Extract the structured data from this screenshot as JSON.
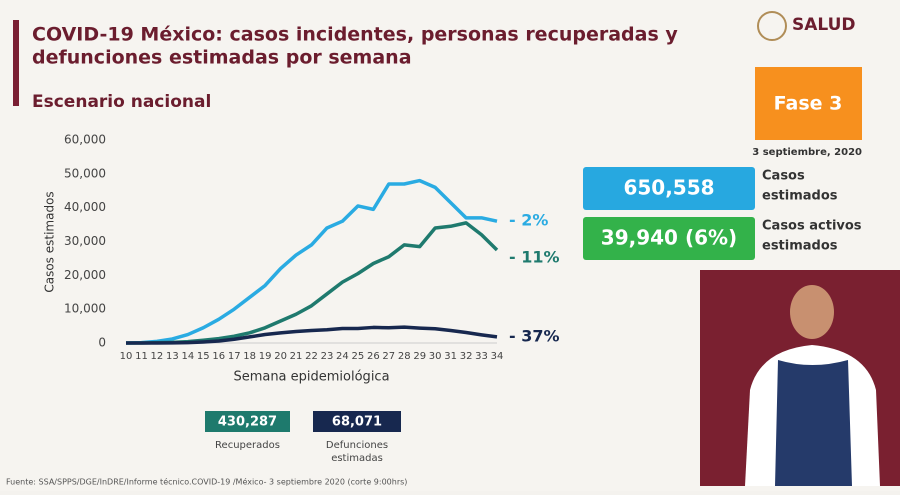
{
  "header": {
    "title_line1": "COVID-19 México: casos incidentes, personas recuperadas y",
    "title_line2": "defunciones estimadas por semana",
    "subtitle": "Escenario nacional",
    "logo": "SALUD",
    "phase": "Fase 3",
    "date": "3 septiembre, 2020"
  },
  "stats": [
    {
      "value": "650,558",
      "label_line1": "Casos",
      "label_line2": "estimados",
      "color": "#27a8e0"
    },
    {
      "value": "39,940 (6%)",
      "label_line1": "Casos activos",
      "label_line2": "estimados",
      "color": "#33b24a"
    }
  ],
  "totals": [
    {
      "value": "430,287",
      "label_line1": "Recuperados",
      "color": "#1e7a6d"
    },
    {
      "value": "68,071",
      "label_line1": "Defunciones",
      "label_line2": "estimadas",
      "color": "#17284f"
    }
  ],
  "footer": "Fuente: SSA/SPPS/DGE/InDRE/Informe técnico.COVID-19 /México- 3 septiembre 2020 (corte 9:00hrs)",
  "chart_data": {
    "type": "line",
    "ylabel": "Casos estimados",
    "xlabel": "Semana epidemiológica",
    "x": [
      10,
      11,
      12,
      13,
      14,
      15,
      16,
      17,
      18,
      19,
      20,
      21,
      22,
      23,
      24,
      25,
      26,
      27,
      28,
      29,
      30,
      31,
      32,
      33,
      34
    ],
    "xlim": [
      10,
      34
    ],
    "xticks": [
      10,
      11,
      12,
      13,
      14,
      15,
      16,
      17,
      18,
      19,
      20,
      21,
      22,
      23,
      24,
      25,
      26,
      27,
      28,
      29,
      30,
      31,
      32,
      33,
      34
    ],
    "ylim": [
      0,
      60000
    ],
    "yticks": [
      0,
      {
        "value": 10000,
        "label": "10,000"
      },
      {
        "value": 20000,
        "label": "20,000"
      },
      {
        "value": 30000,
        "label": "30,000"
      },
      {
        "value": 40000,
        "label": "40,000"
      },
      {
        "value": 50000,
        "label": "50,000"
      },
      {
        "value": 60000,
        "label": "60,000"
      }
    ],
    "series": [
      {
        "color": "#2aabe2",
        "end_label": "- 2%",
        "values": [
          0,
          100,
          500,
          1200,
          2500,
          4500,
          7000,
          10000,
          13500,
          17000,
          22000,
          26000,
          29000,
          34000,
          36000,
          40500,
          39500,
          47000,
          47000,
          48000,
          46000,
          41500,
          37000,
          37000,
          36000
        ]
      },
      {
        "color": "#1f7a6e",
        "end_label": "- 11%",
        "values": [
          0,
          0,
          100,
          200,
          400,
          800,
          1300,
          2000,
          3000,
          4500,
          6500,
          8500,
          11000,
          14500,
          18000,
          20500,
          23500,
          25500,
          29000,
          28500,
          34000,
          34500,
          35500,
          32000,
          27500
        ]
      },
      {
        "color": "#17284f",
        "end_label": "- 37%",
        "values": [
          0,
          0,
          0,
          50,
          100,
          300,
          600,
          1100,
          1800,
          2500,
          3000,
          3400,
          3700,
          3900,
          4300,
          4300,
          4600,
          4500,
          4700,
          4400,
          4200,
          3700,
          3100,
          2400,
          1800
        ]
      }
    ]
  }
}
